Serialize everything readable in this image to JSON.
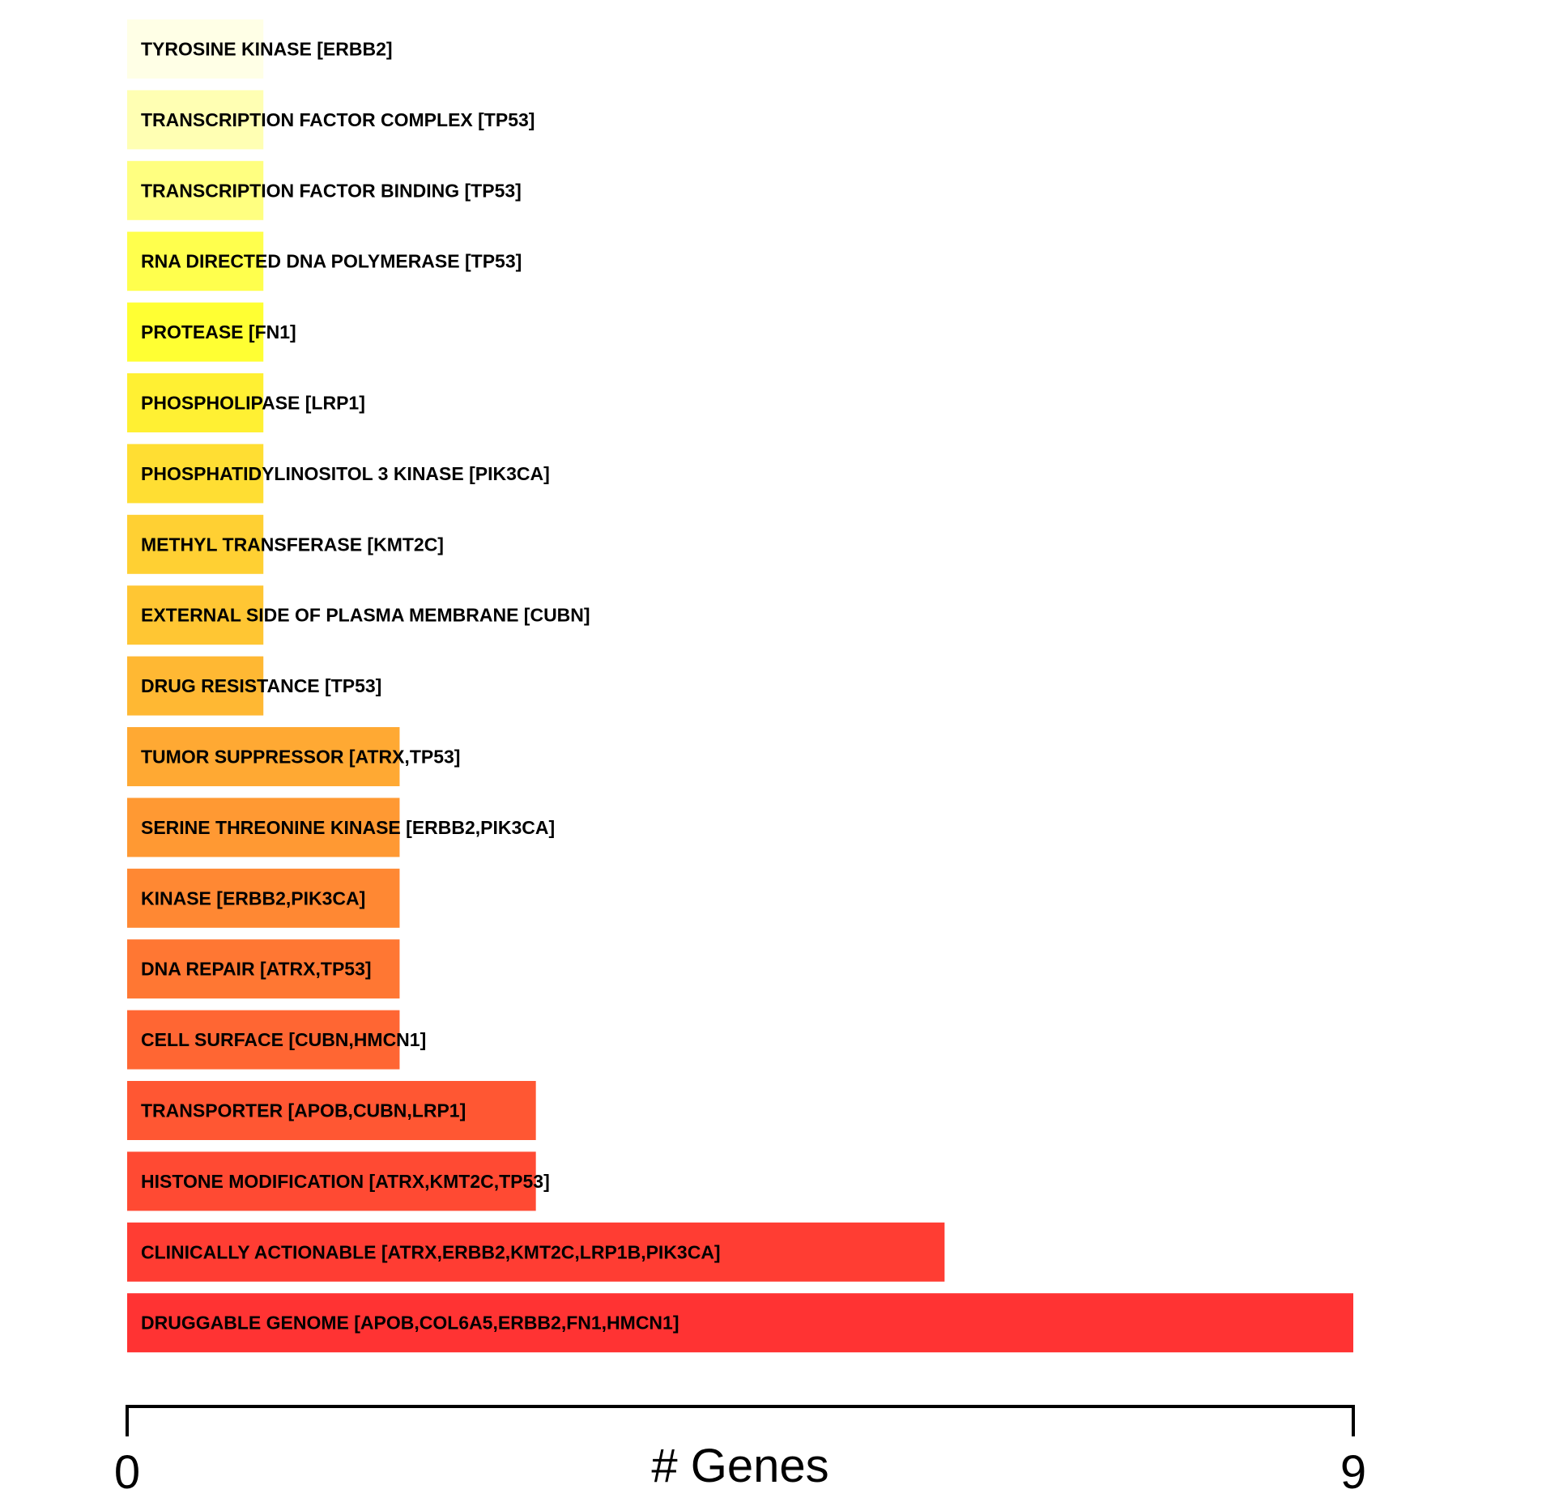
{
  "chart_data": {
    "type": "bar",
    "orientation": "horizontal",
    "xlabel": "# Genes",
    "xlim": [
      0,
      9
    ],
    "x_ticks": [
      "0",
      "9"
    ],
    "grid": false,
    "legend": "none",
    "categories": [
      "TYROSINE KINASE [ERBB2]",
      "TRANSCRIPTION FACTOR COMPLEX [TP53]",
      "TRANSCRIPTION FACTOR BINDING [TP53]",
      "RNA DIRECTED DNA POLYMERASE [TP53]",
      "PROTEASE [FN1]",
      "PHOSPHOLIPASE [LRP1]",
      "PHOSPHATIDYLINOSITOL 3 KINASE [PIK3CA]",
      "METHYL TRANSFERASE [KMT2C]",
      "EXTERNAL SIDE OF PLASMA MEMBRANE [CUBN]",
      "DRUG RESISTANCE [TP53]",
      "TUMOR SUPPRESSOR [ATRX,TP53]",
      "SERINE THREONINE KINASE [ERBB2,PIK3CA]",
      "KINASE [ERBB2,PIK3CA]",
      "DNA REPAIR [ATRX,TP53]",
      "CELL SURFACE [CUBN,HMCN1]",
      "TRANSPORTER [APOB,CUBN,LRP1]",
      "HISTONE MODIFICATION [ATRX,KMT2C,TP53]",
      "CLINICALLY ACTIONABLE [ATRX,ERBB2,KMT2C,LRP1B,PIK3CA]",
      "DRUGGABLE GENOME [APOB,COL6A5,ERBB2,FN1,HMCN1]"
    ],
    "values": [
      1,
      1,
      1,
      1,
      1,
      1,
      1,
      1,
      1,
      1,
      2,
      2,
      2,
      2,
      2,
      3,
      3,
      6,
      9
    ],
    "colors": [
      "#FFFFE6",
      "#FFFFB3",
      "#FFFF80",
      "#FFFF4D",
      "#FFFF33",
      "#FFF033",
      "#FFDE33",
      "#FFD033",
      "#FFC633",
      "#FFB833",
      "#FFA933",
      "#FF9933",
      "#FF8833",
      "#FF7733",
      "#FF6633",
      "#FF5733",
      "#FF4A33",
      "#FF3D33",
      "#FF3333"
    ]
  }
}
